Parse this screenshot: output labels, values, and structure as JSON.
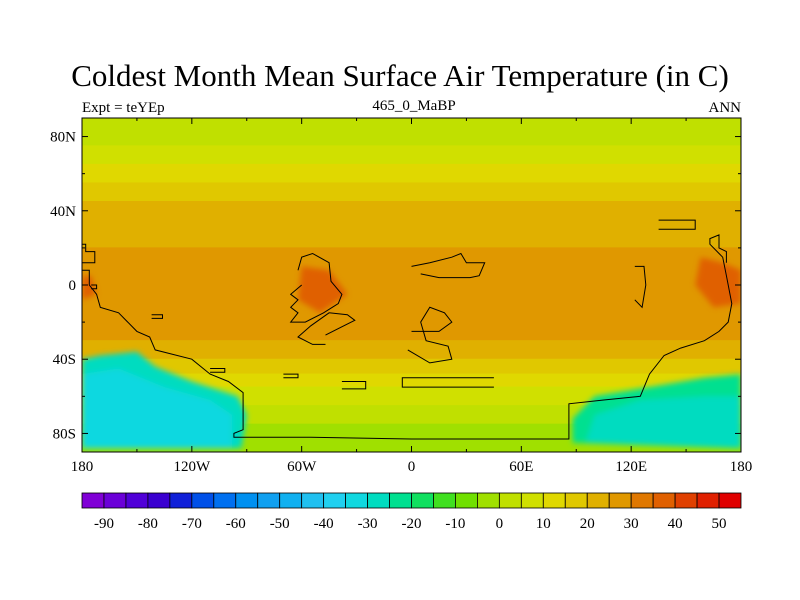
{
  "title": "Coldest Month Mean Surface Air Temperature (in C)",
  "subtitle_left": "Expt = teYEp",
  "subtitle_center": "465_0_MaBP",
  "subtitle_right": "ANN",
  "chart_data": {
    "type": "heatmap",
    "title": "Coldest Month Mean Surface Air Temperature (in C)",
    "units": "C",
    "x_axis": {
      "range": [
        -180,
        180
      ],
      "ticks": [
        -180,
        -120,
        -60,
        0,
        60,
        120,
        180
      ],
      "tick_labels": [
        "180",
        "120W",
        "60W",
        "0",
        "60E",
        "120E",
        "180"
      ]
    },
    "y_axis": {
      "range": [
        -90,
        90
      ],
      "ticks": [
        80,
        40,
        0,
        -40,
        -80
      ],
      "tick_labels": [
        "80N",
        "40N",
        "0",
        "40S",
        "80S"
      ]
    },
    "colorbar": {
      "levels": [
        -90,
        -85,
        -80,
        -75,
        -70,
        -65,
        -60,
        -55,
        -50,
        -45,
        -40,
        -35,
        -30,
        -25,
        -20,
        -15,
        -10,
        -5,
        0,
        5,
        10,
        15,
        20,
        25,
        30,
        35,
        40,
        45,
        50
      ],
      "labels": [
        "-90",
        "-80",
        "-70",
        "-60",
        "-50",
        "-40",
        "-30",
        "-20",
        "-10",
        "0",
        "10",
        "20",
        "30",
        "40",
        "50"
      ],
      "label_values": [
        -90,
        -80,
        -70,
        -60,
        -50,
        -40,
        -30,
        -20,
        -10,
        0,
        10,
        20,
        30,
        40,
        50
      ],
      "colors": [
        "#8000d6",
        "#6b00d8",
        "#5000d8",
        "#3a00d0",
        "#1020d8",
        "#0050e8",
        "#0070f0",
        "#0090f0",
        "#10a0f0",
        "#10b0f0",
        "#20c0f0",
        "#20d0f0",
        "#10d8e0",
        "#00dcc0",
        "#00e090",
        "#10e060",
        "#40e020",
        "#70e000",
        "#a0e000",
        "#c0e000",
        "#d0e000",
        "#e0d800",
        "#e0c800",
        "#e0b000",
        "#e09800",
        "#e07800",
        "#e06000",
        "#e04000",
        "#e02000",
        "#e00000"
      ]
    },
    "zonal_bands": [
      {
        "lat": [
          75,
          90
        ],
        "value": 1
      },
      {
        "lat": [
          65,
          75
        ],
        "value": 6
      },
      {
        "lat": [
          55,
          65
        ],
        "value": 10
      },
      {
        "lat": [
          45,
          55
        ],
        "value": 15
      },
      {
        "lat": [
          30,
          45
        ],
        "value": 20
      },
      {
        "lat": [
          20,
          30
        ],
        "value": 24
      },
      {
        "lat": [
          -20,
          20
        ],
        "value": 28
      },
      {
        "lat": [
          -30,
          -20
        ],
        "value": 26
      },
      {
        "lat": [
          -40,
          -30
        ],
        "value": 21
      },
      {
        "lat": [
          -48,
          -40
        ],
        "value": 16
      },
      {
        "lat": [
          -55,
          -48
        ],
        "value": 12
      },
      {
        "lat": [
          -65,
          -55
        ],
        "value": 6
      },
      {
        "lat": [
          -75,
          -65
        ],
        "value": 0
      },
      {
        "lat": [
          -90,
          -75
        ],
        "value": -5
      }
    ],
    "features": [
      {
        "name": "cold-continent-west",
        "value": -28,
        "poly": [
          [
            -180,
            -40
          ],
          [
            -170,
            -38
          ],
          [
            -150,
            -36
          ],
          [
            -140,
            -44
          ],
          [
            -120,
            -52
          ],
          [
            -95,
            -60
          ],
          [
            -90,
            -70
          ],
          [
            -93,
            -88
          ],
          [
            -180,
            -88
          ]
        ]
      },
      {
        "name": "cold-continent-west-core",
        "value": -35,
        "poly": [
          [
            -180,
            -48
          ],
          [
            -160,
            -45
          ],
          [
            -135,
            -55
          ],
          [
            -110,
            -62
          ],
          [
            -98,
            -70
          ],
          [
            -98,
            -88
          ],
          [
            -180,
            -88
          ]
        ]
      },
      {
        "name": "cold-continent-east",
        "value": -22,
        "poly": [
          [
            88,
            -85
          ],
          [
            88,
            -72
          ],
          [
            100,
            -60
          ],
          [
            130,
            -55
          ],
          [
            160,
            -50
          ],
          [
            180,
            -48
          ],
          [
            180,
            -88
          ]
        ]
      },
      {
        "name": "cold-continent-east-core",
        "value": -30,
        "poly": [
          [
            95,
            -85
          ],
          [
            100,
            -70
          ],
          [
            125,
            -62
          ],
          [
            160,
            -60
          ],
          [
            180,
            -60
          ],
          [
            180,
            -88
          ]
        ]
      },
      {
        "name": "warm-equatorial-west",
        "value": 37,
        "poly": [
          [
            -60,
            10
          ],
          [
            -45,
            8
          ],
          [
            -35,
            -5
          ],
          [
            -50,
            -15
          ],
          [
            -62,
            -8
          ]
        ]
      },
      {
        "name": "warm-equatorial-east",
        "value": 37,
        "poly": [
          [
            158,
            15
          ],
          [
            170,
            12
          ],
          [
            180,
            8
          ],
          [
            180,
            -10
          ],
          [
            165,
            -12
          ],
          [
            155,
            0
          ]
        ]
      },
      {
        "name": "warm-equatorial-edge",
        "value": 36,
        "poly": [
          [
            -180,
            5
          ],
          [
            -175,
            5
          ],
          [
            -172,
            -5
          ],
          [
            -180,
            -8
          ]
        ]
      }
    ],
    "coastlines": [
      [
        [
          -180,
          22
        ],
        [
          -178,
          22
        ],
        [
          -178,
          18
        ],
        [
          -173,
          18
        ],
        [
          -173,
          12
        ],
        [
          -180,
          12
        ]
      ],
      [
        [
          -180,
          8
        ],
        [
          -176,
          8
        ],
        [
          -176,
          0
        ],
        [
          -172,
          -5
        ],
        [
          -170,
          -12
        ],
        [
          -160,
          -15
        ],
        [
          -150,
          -25
        ],
        [
          -143,
          -28
        ],
        [
          -140,
          -35
        ],
        [
          -120,
          -40
        ],
        [
          -110,
          -48
        ],
        [
          -100,
          -52
        ],
        [
          -92,
          -58
        ],
        [
          -92,
          -78
        ],
        [
          -97,
          -80
        ],
        [
          -97,
          -82
        ],
        [
          -55,
          -82
        ],
        [
          0,
          -83
        ],
        [
          50,
          -83
        ],
        [
          86,
          -83
        ],
        [
          86,
          -64
        ],
        [
          105,
          -62
        ],
        [
          125,
          -60
        ],
        [
          130,
          -48
        ],
        [
          138,
          -38
        ],
        [
          147,
          -34
        ],
        [
          160,
          -30
        ],
        [
          168,
          -25
        ],
        [
          173,
          -20
        ],
        [
          175,
          -10
        ],
        [
          172,
          5
        ],
        [
          170,
          15
        ],
        [
          163,
          22
        ],
        [
          163,
          25
        ],
        [
          168,
          27
        ],
        [
          168,
          20
        ],
        [
          172,
          18
        ],
        [
          172,
          12
        ]
      ],
      [
        [
          -62,
          8
        ],
        [
          -60,
          15
        ],
        [
          -54,
          17
        ],
        [
          -45,
          12
        ],
        [
          -44,
          2
        ],
        [
          -38,
          -5
        ],
        [
          -40,
          -10
        ],
        [
          -48,
          -15
        ],
        [
          -58,
          -20
        ],
        [
          -66,
          -20
        ],
        [
          -62,
          -15
        ],
        [
          -66,
          -12
        ],
        [
          -62,
          -8
        ],
        [
          -66,
          -5
        ],
        [
          -60,
          0
        ]
      ],
      [
        [
          -47,
          -27
        ],
        [
          -37,
          -22
        ],
        [
          -31,
          -19
        ],
        [
          -35,
          -16
        ],
        [
          -45,
          -15
        ],
        [
          -55,
          -22
        ],
        [
          -62,
          -28
        ],
        [
          -54,
          -32
        ],
        [
          -47,
          -32
        ]
      ],
      [
        [
          0,
          -25
        ],
        [
          15,
          -25
        ],
        [
          22,
          -20
        ],
        [
          18,
          -15
        ],
        [
          10,
          -12
        ],
        [
          5,
          -20
        ],
        [
          8,
          -30
        ],
        [
          20,
          -33
        ],
        [
          22,
          -40
        ],
        [
          10,
          -42
        ],
        [
          -2,
          -35
        ]
      ],
      [
        [
          0,
          10
        ],
        [
          10,
          12
        ],
        [
          22,
          15
        ],
        [
          27,
          17
        ],
        [
          30,
          12
        ],
        [
          40,
          12
        ],
        [
          37,
          5
        ],
        [
          32,
          4
        ],
        [
          15,
          4
        ],
        [
          5,
          6
        ]
      ],
      [
        [
          45,
          -50
        ],
        [
          -5,
          -50
        ],
        [
          -5,
          -55
        ],
        [
          45,
          -55
        ]
      ],
      [
        [
          -38,
          -52
        ],
        [
          -25,
          -52
        ],
        [
          -25,
          -56
        ],
        [
          -38,
          -56
        ]
      ],
      [
        [
          -110,
          -47
        ],
        [
          -102,
          -47
        ],
        [
          -102,
          -45
        ],
        [
          -110,
          -45
        ]
      ],
      [
        [
          -175,
          -2
        ],
        [
          -172,
          -2
        ],
        [
          -172,
          0
        ],
        [
          -175,
          0
        ]
      ],
      [
        [
          135,
          35
        ],
        [
          155,
          35
        ],
        [
          155,
          30
        ],
        [
          135,
          30
        ]
      ],
      [
        [
          122,
          10
        ],
        [
          127,
          10
        ],
        [
          128,
          0
        ],
        [
          126,
          -12
        ],
        [
          122,
          -8
        ]
      ],
      [
        [
          -142,
          -16
        ],
        [
          -136,
          -16
        ],
        [
          -136,
          -18
        ],
        [
          -142,
          -18
        ]
      ],
      [
        [
          -70,
          -48
        ],
        [
          -62,
          -48
        ],
        [
          -62,
          -50
        ],
        [
          -70,
          -50
        ]
      ]
    ]
  }
}
